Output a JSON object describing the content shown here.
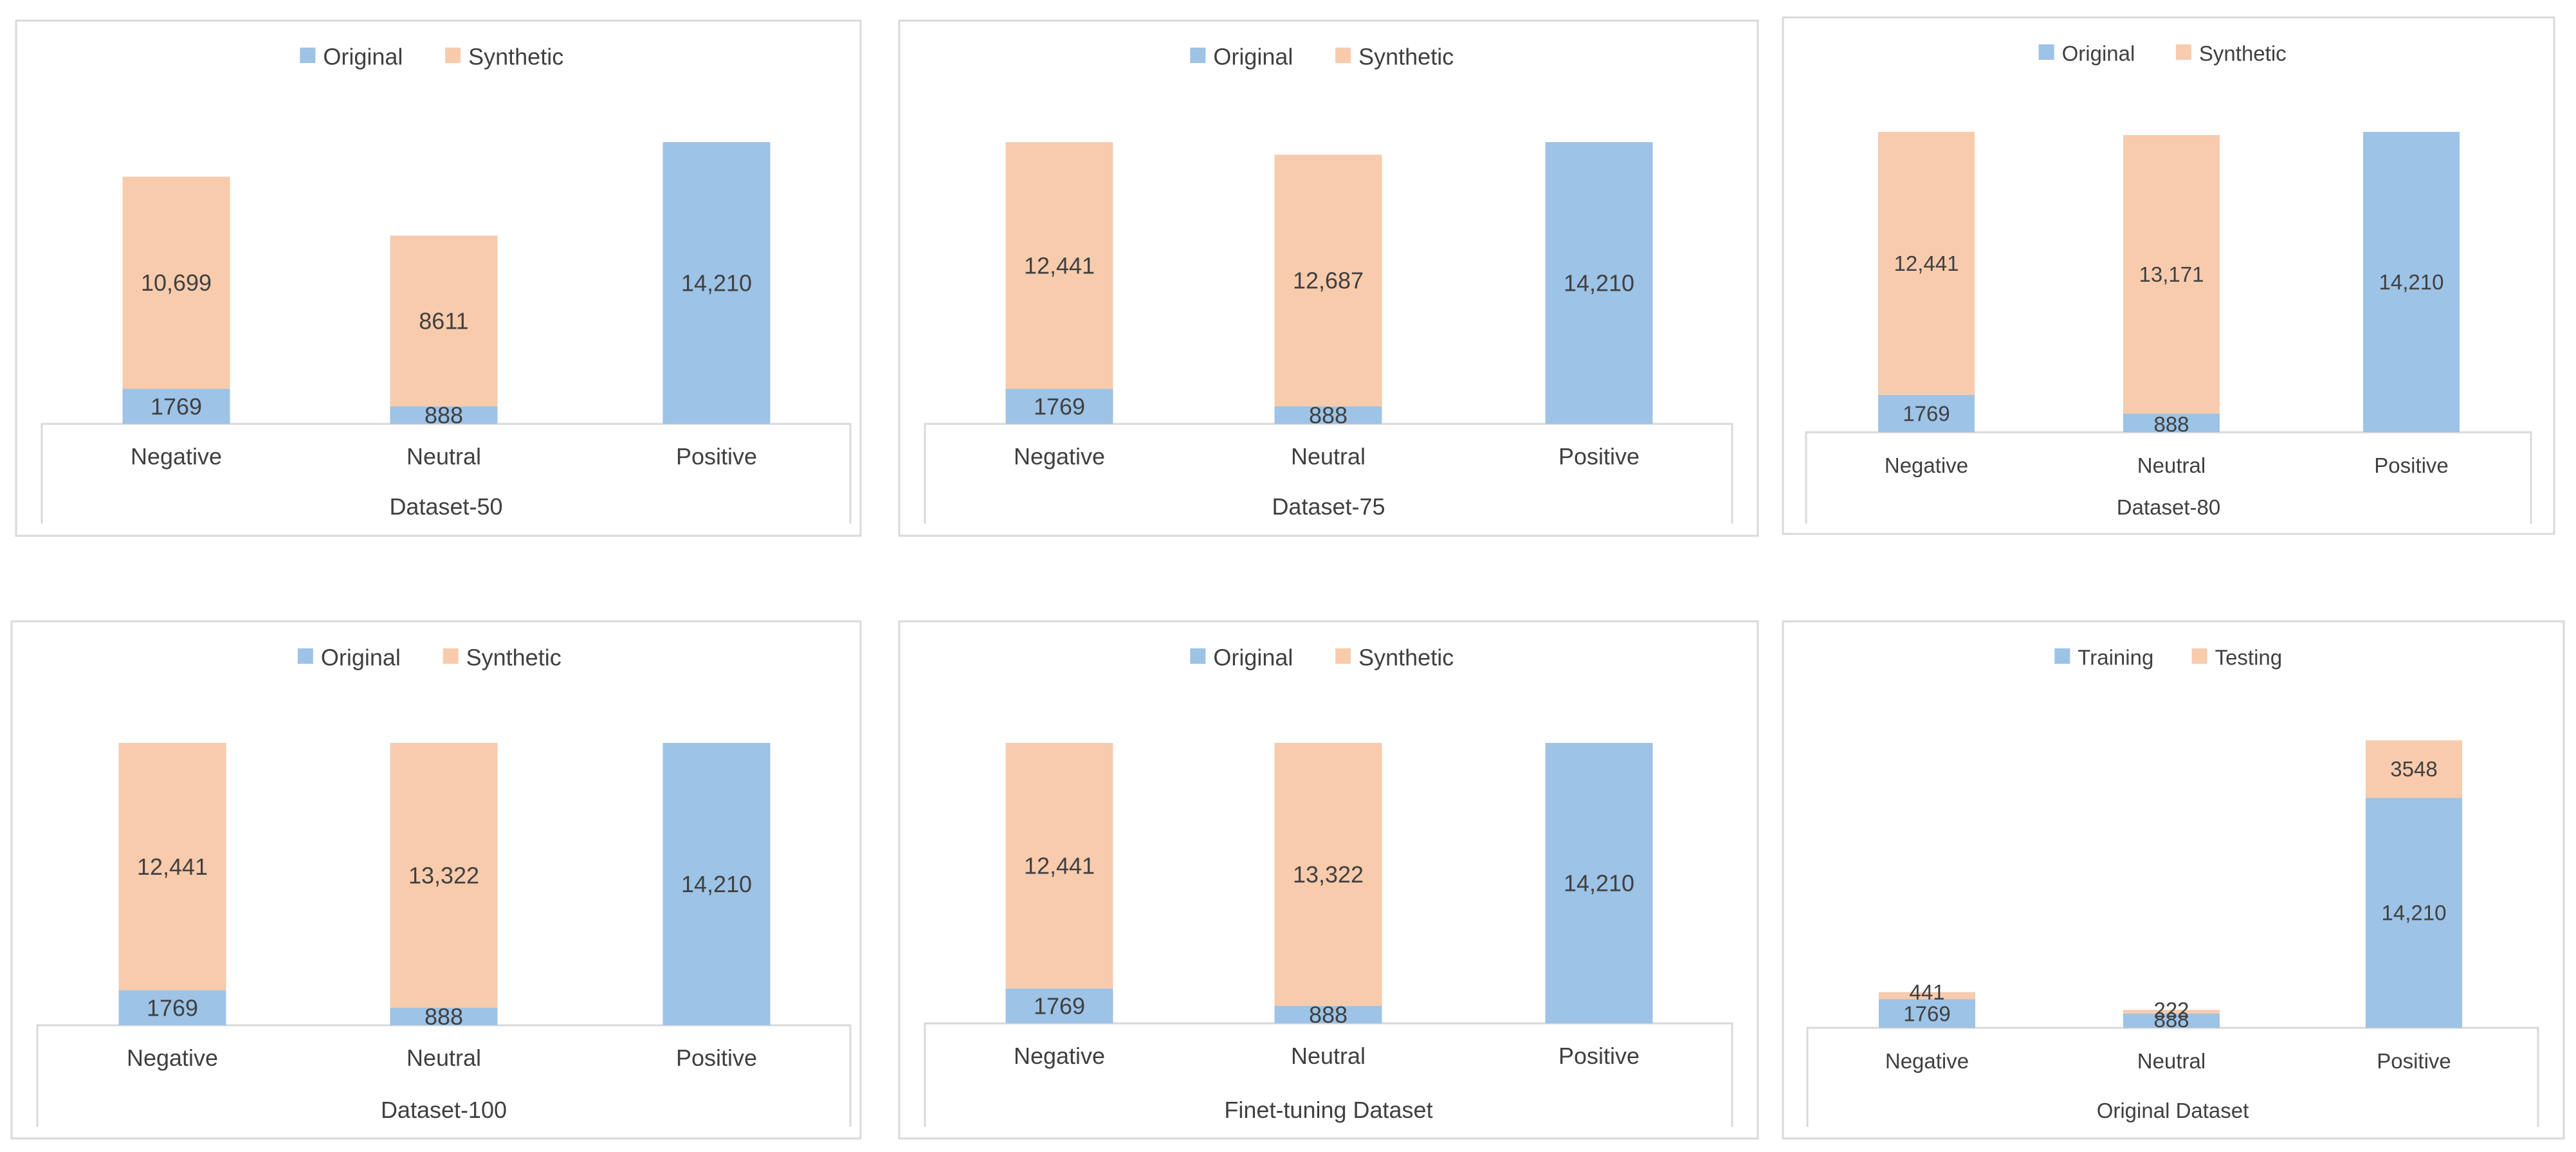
{
  "colors": {
    "original": "#9DC3E6",
    "synthetic": "#F8CBAD",
    "frame": "#D9D9D9",
    "text": "#404040"
  },
  "chart_data": [
    {
      "type": "bar",
      "stacked": true,
      "title": "",
      "xlabel": "Dataset-50",
      "ylabel": "",
      "categories": [
        "Negative",
        "Neutral",
        "Positive"
      ],
      "series": [
        {
          "name": "Original",
          "values": [
            1769,
            888,
            14210
          ]
        },
        {
          "name": "Synthetic",
          "values": [
            10699,
            8611,
            0
          ]
        }
      ],
      "labels": [
        [
          "1769",
          "888",
          "14,210"
        ],
        [
          "10,699",
          "8611",
          ""
        ]
      ],
      "legend": "top-center",
      "ylim": [
        0,
        14210
      ]
    },
    {
      "type": "bar",
      "stacked": true,
      "title": "",
      "xlabel": "Dataset-75",
      "ylabel": "",
      "categories": [
        "Negative",
        "Neutral",
        "Positive"
      ],
      "series": [
        {
          "name": "Original",
          "values": [
            1769,
            888,
            14210
          ]
        },
        {
          "name": "Synthetic",
          "values": [
            12441,
            12687,
            0
          ]
        }
      ],
      "labels": [
        [
          "1769",
          "888",
          "14,210"
        ],
        [
          "12,441",
          "12,687",
          ""
        ]
      ],
      "legend": "top-center",
      "ylim": [
        0,
        14210
      ]
    },
    {
      "type": "bar",
      "stacked": true,
      "title": "",
      "xlabel": "Dataset-80",
      "ylabel": "",
      "categories": [
        "Negative",
        "Neutral",
        "Positive"
      ],
      "series": [
        {
          "name": "Original",
          "values": [
            1769,
            888,
            14210
          ]
        },
        {
          "name": "Synthetic",
          "values": [
            12441,
            13171,
            0
          ]
        }
      ],
      "labels": [
        [
          "1769",
          "888",
          "14,210"
        ],
        [
          "12,441",
          "13,171",
          ""
        ]
      ],
      "legend": "top-center",
      "ylim": [
        0,
        14210
      ]
    },
    {
      "type": "bar",
      "stacked": true,
      "title": "",
      "xlabel": "Dataset-100",
      "ylabel": "",
      "categories": [
        "Negative",
        "Neutral",
        "Positive"
      ],
      "series": [
        {
          "name": "Original",
          "values": [
            1769,
            888,
            14210
          ]
        },
        {
          "name": "Synthetic",
          "values": [
            12441,
            13322,
            0
          ]
        }
      ],
      "labels": [
        [
          "1769",
          "888",
          "14,210"
        ],
        [
          "12,441",
          "13,322",
          ""
        ]
      ],
      "legend": "top-center",
      "ylim": [
        0,
        14210
      ]
    },
    {
      "type": "bar",
      "stacked": true,
      "title": "",
      "xlabel": "Finet-tuning Dataset",
      "ylabel": "",
      "categories": [
        "Negative",
        "Neutral",
        "Positive"
      ],
      "series": [
        {
          "name": "Original",
          "values": [
            1769,
            888,
            14210
          ]
        },
        {
          "name": "Synthetic",
          "values": [
            12441,
            13322,
            0
          ]
        }
      ],
      "labels": [
        [
          "1769",
          "888",
          "14,210"
        ],
        [
          "12,441",
          "13,322",
          ""
        ]
      ],
      "legend": "top-center",
      "ylim": [
        0,
        14210
      ]
    },
    {
      "type": "bar",
      "stacked": true,
      "title": "",
      "xlabel": "Original Dataset",
      "ylabel": "",
      "categories": [
        "Negative",
        "Neutral",
        "Positive"
      ],
      "series": [
        {
          "name": "Training",
          "values": [
            1769,
            888,
            14210
          ]
        },
        {
          "name": "Testing",
          "values": [
            441,
            222,
            3548
          ]
        }
      ],
      "labels": [
        [
          "1769",
          "888",
          "14,210"
        ],
        [
          "441",
          "222",
          "3548"
        ]
      ],
      "legend": "top-center",
      "ylim": [
        0,
        17758
      ]
    }
  ]
}
